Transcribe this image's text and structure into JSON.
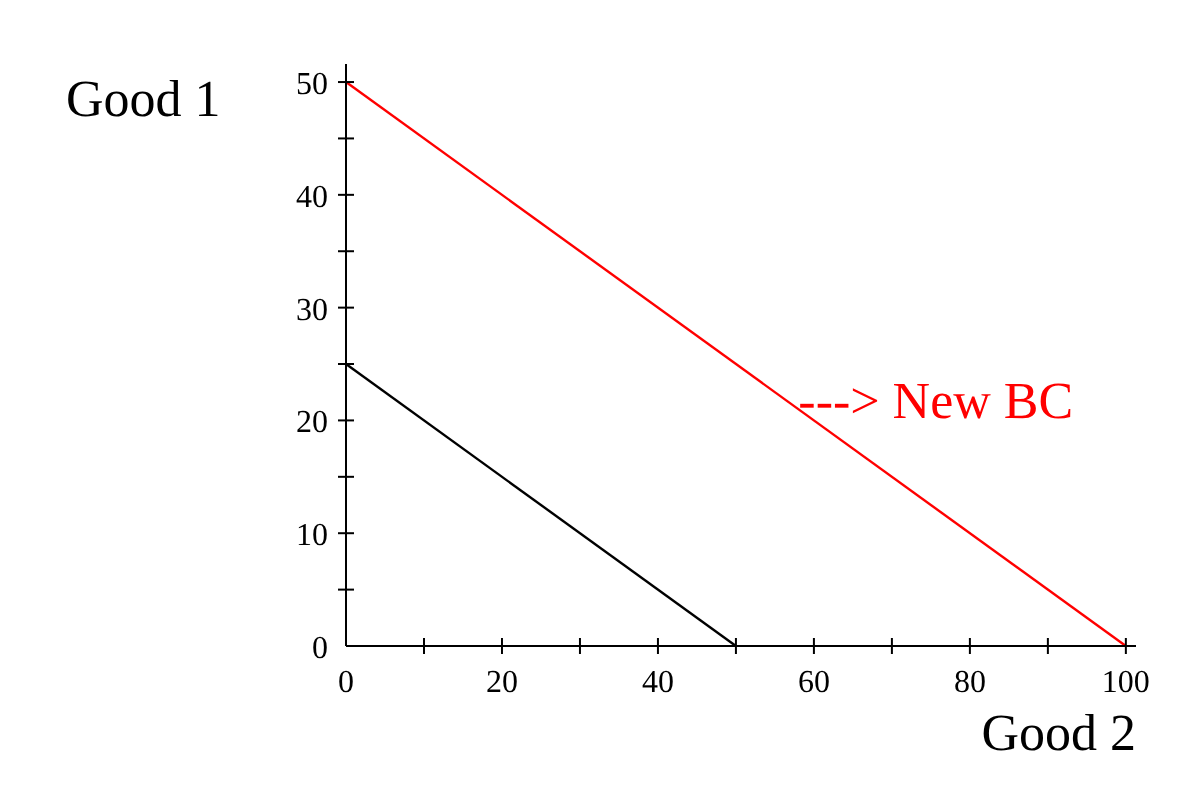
{
  "chart_data": {
    "type": "line",
    "xlabel": "Good 2",
    "ylabel": "Good 1",
    "xlim": [
      0,
      101.3
    ],
    "ylim": [
      0,
      51.6
    ],
    "xticks": [
      0,
      {
        "value": 10,
        "label": null
      },
      20,
      {
        "value": 30,
        "label": null
      },
      40,
      {
        "value": 50,
        "label": null
      },
      60,
      {
        "value": 70,
        "label": null
      },
      80,
      {
        "value": 90,
        "label": null
      },
      100
    ],
    "yticks": [
      0,
      {
        "value": 5,
        "label": null
      },
      10,
      {
        "value": 15,
        "label": null
      },
      20,
      {
        "value": 25,
        "label": null
      },
      30,
      {
        "value": 35,
        "label": null
      },
      40,
      {
        "value": 45,
        "label": null
      },
      50
    ],
    "grid": false,
    "marker": "none",
    "line_style": "solid",
    "series": [
      {
        "color": "#000000",
        "x": [
          0,
          50
        ],
        "values": [
          25,
          0
        ]
      },
      {
        "color": "#ff0000",
        "x": [
          0,
          100
        ],
        "values": [
          50,
          0
        ]
      }
    ],
    "annotations": [
      {
        "text": "---> New BC",
        "x": 58,
        "y": 21.6
      }
    ]
  }
}
